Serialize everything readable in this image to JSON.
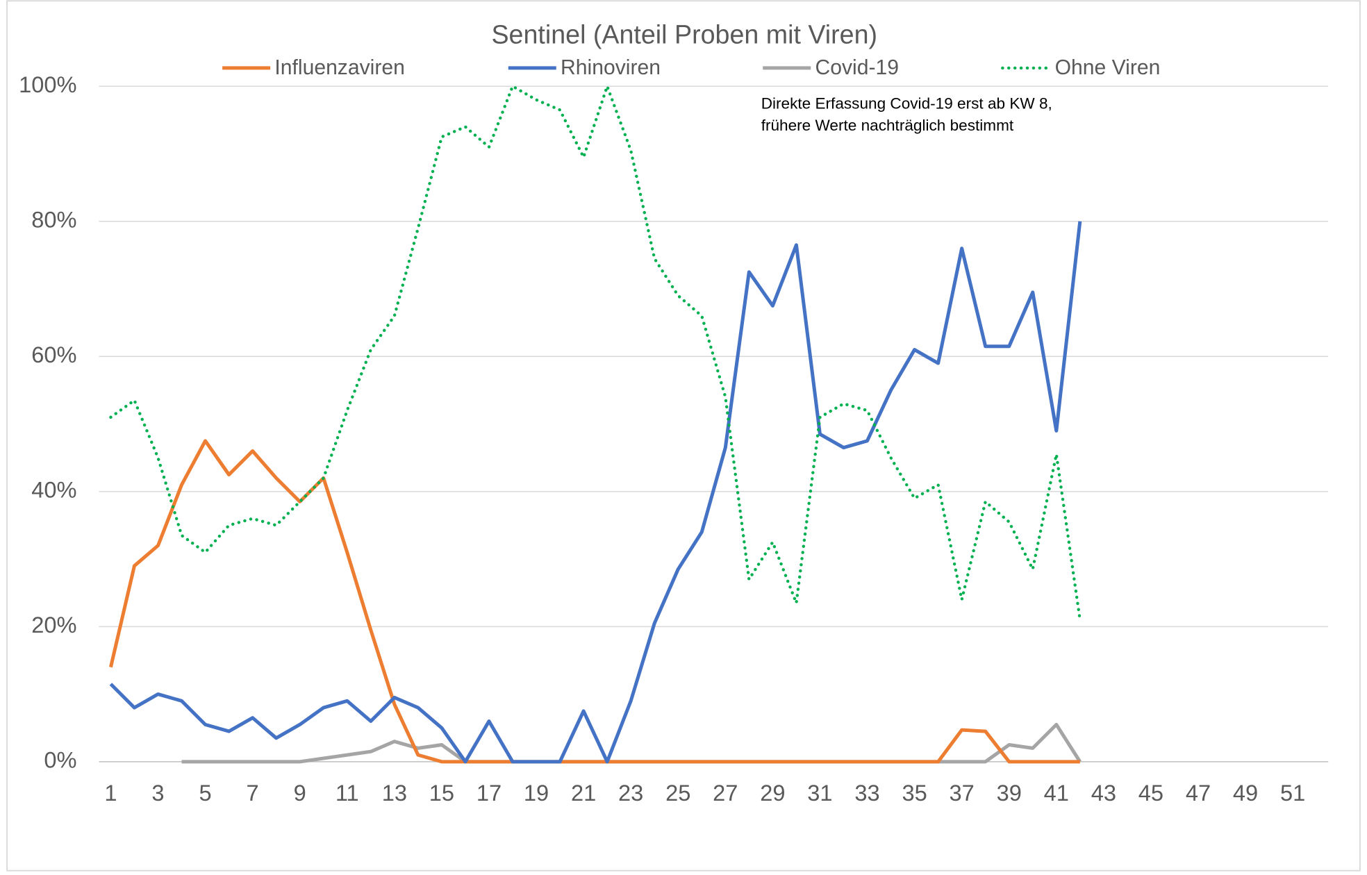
{
  "chart_data": {
    "type": "line",
    "title": "Sentinel (Anteil Proben mit Viren)",
    "annotation": [
      "Direkte Erfassung Covid-19 erst ab KW 8,",
      "frühere Werte nachträglich bestimmt"
    ],
    "categories": [
      1,
      null,
      3,
      null,
      5,
      null,
      7,
      null,
      9,
      null,
      11,
      null,
      13,
      null,
      15,
      null,
      17,
      null,
      19,
      null,
      21,
      null,
      23,
      null,
      25,
      null,
      27,
      null,
      29,
      null,
      31,
      null,
      33,
      null,
      35,
      null,
      37,
      null,
      39,
      null,
      41,
      null,
      43,
      null,
      45,
      null,
      47,
      null,
      49,
      null,
      51,
      null
    ],
    "ylim": [
      0,
      100
    ],
    "yticks": [
      {
        "value": 0,
        "label": "0%"
      },
      {
        "value": 20,
        "label": "20%"
      },
      {
        "value": 40,
        "label": "40%"
      },
      {
        "value": 60,
        "label": "60%"
      },
      {
        "value": 80,
        "label": "80%"
      },
      {
        "value": 100,
        "label": "100%"
      }
    ],
    "grid": true,
    "legend": "top",
    "series": [
      {
        "name": "Influenzaviren",
        "color": "#ed7d31",
        "line_style": "solid",
        "values": [
          14,
          29,
          32,
          41,
          47.5,
          42.5,
          46,
          42,
          38.5,
          42,
          31,
          19.5,
          8.5,
          1,
          0,
          0,
          0,
          0,
          0,
          0,
          0,
          0,
          0,
          0,
          0,
          0,
          0,
          0,
          0,
          0,
          0,
          0,
          0,
          0,
          0,
          0,
          4.7,
          4.5,
          0,
          0,
          0,
          0,
          null,
          null,
          null,
          null,
          null,
          null,
          null,
          null,
          null,
          null
        ]
      },
      {
        "name": "Rhinoviren",
        "color": "#4472c4",
        "line_style": "solid",
        "values": [
          11.5,
          8,
          10,
          9,
          5.5,
          4.5,
          6.5,
          3.5,
          5.5,
          8,
          9,
          6,
          9.5,
          8,
          5,
          0,
          6,
          0,
          0,
          0,
          7.5,
          0,
          9,
          20.5,
          28.5,
          34,
          46.5,
          72.5,
          67.5,
          76.5,
          48.5,
          46.5,
          47.5,
          55,
          61,
          59,
          76,
          61.5,
          61.5,
          69.5,
          49,
          80,
          null,
          null,
          null,
          null,
          null,
          null,
          null,
          null,
          null,
          null
        ]
      },
      {
        "name": "Covid-19",
        "color": "#a5a5a5",
        "line_style": "solid",
        "values": [
          null,
          null,
          null,
          0,
          0,
          0,
          0,
          0,
          0,
          0.5,
          1,
          1.5,
          3,
          2,
          2.5,
          0,
          0,
          0,
          0,
          0,
          0,
          0,
          0,
          0,
          0,
          0,
          0,
          0,
          0,
          0,
          0,
          0,
          0,
          0,
          0,
          0,
          0,
          0,
          2.5,
          2,
          5.5,
          0,
          null,
          null,
          null,
          null,
          null,
          null,
          null,
          null,
          null,
          null
        ]
      },
      {
        "name": "Ohne Viren",
        "color": "#00b050",
        "line_style": "dotted",
        "values": [
          51,
          53.5,
          45,
          33.5,
          31,
          35,
          36,
          35,
          38.5,
          42,
          52,
          61,
          66,
          79,
          92.5,
          94,
          91,
          100,
          98,
          96.5,
          89.5,
          100,
          90.5,
          74.5,
          69,
          66,
          54,
          27,
          32.5,
          23.5,
          51,
          53,
          52,
          45,
          39,
          41,
          24,
          38.5,
          35.5,
          28.5,
          45.5,
          21,
          null,
          null,
          null,
          null,
          null,
          null,
          null,
          null,
          null,
          null
        ]
      }
    ]
  }
}
